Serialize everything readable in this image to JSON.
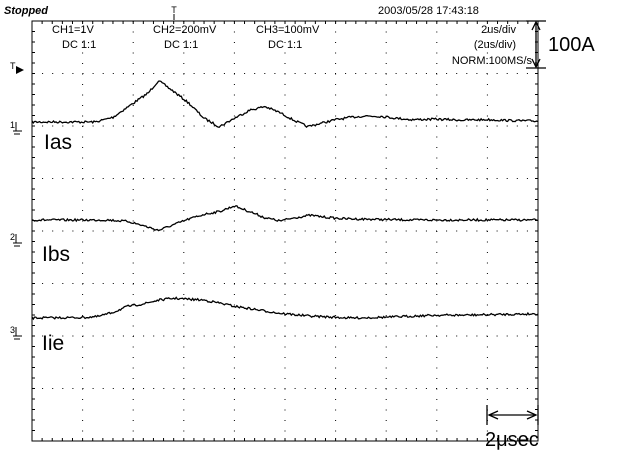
{
  "header": {
    "status": "Stopped",
    "datetime": "2003/05/28  17:43:18",
    "ch1": "CH1=1V",
    "ch1_coupling": "DC  1:1",
    "ch2": "CH2=200mV",
    "ch2_coupling": "DC  1:1",
    "ch3": "CH3=100mV",
    "ch3_coupling": "DC  1:1",
    "timebase": "2us/div",
    "timebase_paren": "(2us/div)",
    "acq": "NORM:100MS/s"
  },
  "markers": {
    "trigger_top": "T",
    "trigger_left": "T",
    "ch1": "1",
    "ch2": "2",
    "ch3": "3"
  },
  "annotations": {
    "current_scale": "100A",
    "time_scale": "2μsec"
  },
  "chart_data": {
    "type": "line",
    "title": "",
    "xlabel": "",
    "ylabel": "",
    "x_unit": "μs",
    "y_unit": "A",
    "xlim": [
      0,
      20
    ],
    "grid": true,
    "x_divisions": 10,
    "y_divisions": 8,
    "series": [
      {
        "name": "Ias",
        "color": "#000000",
        "x": [
          0,
          2.5,
          3.2,
          4.0,
          4.6,
          5.0,
          5.6,
          6.2,
          6.8,
          7.4,
          8.0,
          8.6,
          9.2,
          9.8,
          10.3,
          10.9,
          11.4,
          12.0,
          12.6,
          13.2,
          13.8,
          14.4,
          15.0,
          16.0,
          17.0,
          18.0,
          19.0,
          20.0
        ],
        "values": [
          0,
          0,
          10,
          40,
          62,
          88,
          65,
          40,
          8,
          -10,
          8,
          25,
          33,
          20,
          5,
          -10,
          -3,
          5,
          10,
          13,
          12,
          8,
          5,
          6,
          4,
          5,
          3,
          2
        ]
      },
      {
        "name": "Ibs",
        "color": "#000000",
        "x": [
          0,
          3.0,
          3.8,
          4.4,
          5.0,
          5.6,
          6.2,
          6.8,
          7.4,
          8.0,
          8.6,
          9.2,
          9.8,
          10.4,
          11.0,
          11.6,
          12.2,
          13.0,
          14.0,
          15.0,
          16.0,
          18.0,
          20.0
        ],
        "values": [
          0,
          0,
          -3,
          -12,
          -22,
          -10,
          2,
          12,
          18,
          30,
          18,
          5,
          -2,
          5,
          10,
          6,
          3,
          2,
          1,
          0,
          0,
          0,
          0
        ]
      },
      {
        "name": "Iie",
        "color": "#000000",
        "x": [
          0,
          2.0,
          2.6,
          3.2,
          3.8,
          4.4,
          5.0,
          5.6,
          6.2,
          6.8,
          7.4,
          8.0,
          8.6,
          9.2,
          9.8,
          10.4,
          11.0,
          11.8,
          12.6,
          13.4,
          14.2,
          15.0,
          16.0,
          17.0,
          18.0,
          19.0,
          20.0
        ],
        "values": [
          0,
          1,
          3,
          12,
          25,
          30,
          38,
          42,
          40,
          38,
          32,
          25,
          20,
          15,
          10,
          7,
          4,
          2,
          0,
          1,
          2,
          4,
          6,
          6,
          7,
          8,
          9
        ]
      }
    ]
  }
}
